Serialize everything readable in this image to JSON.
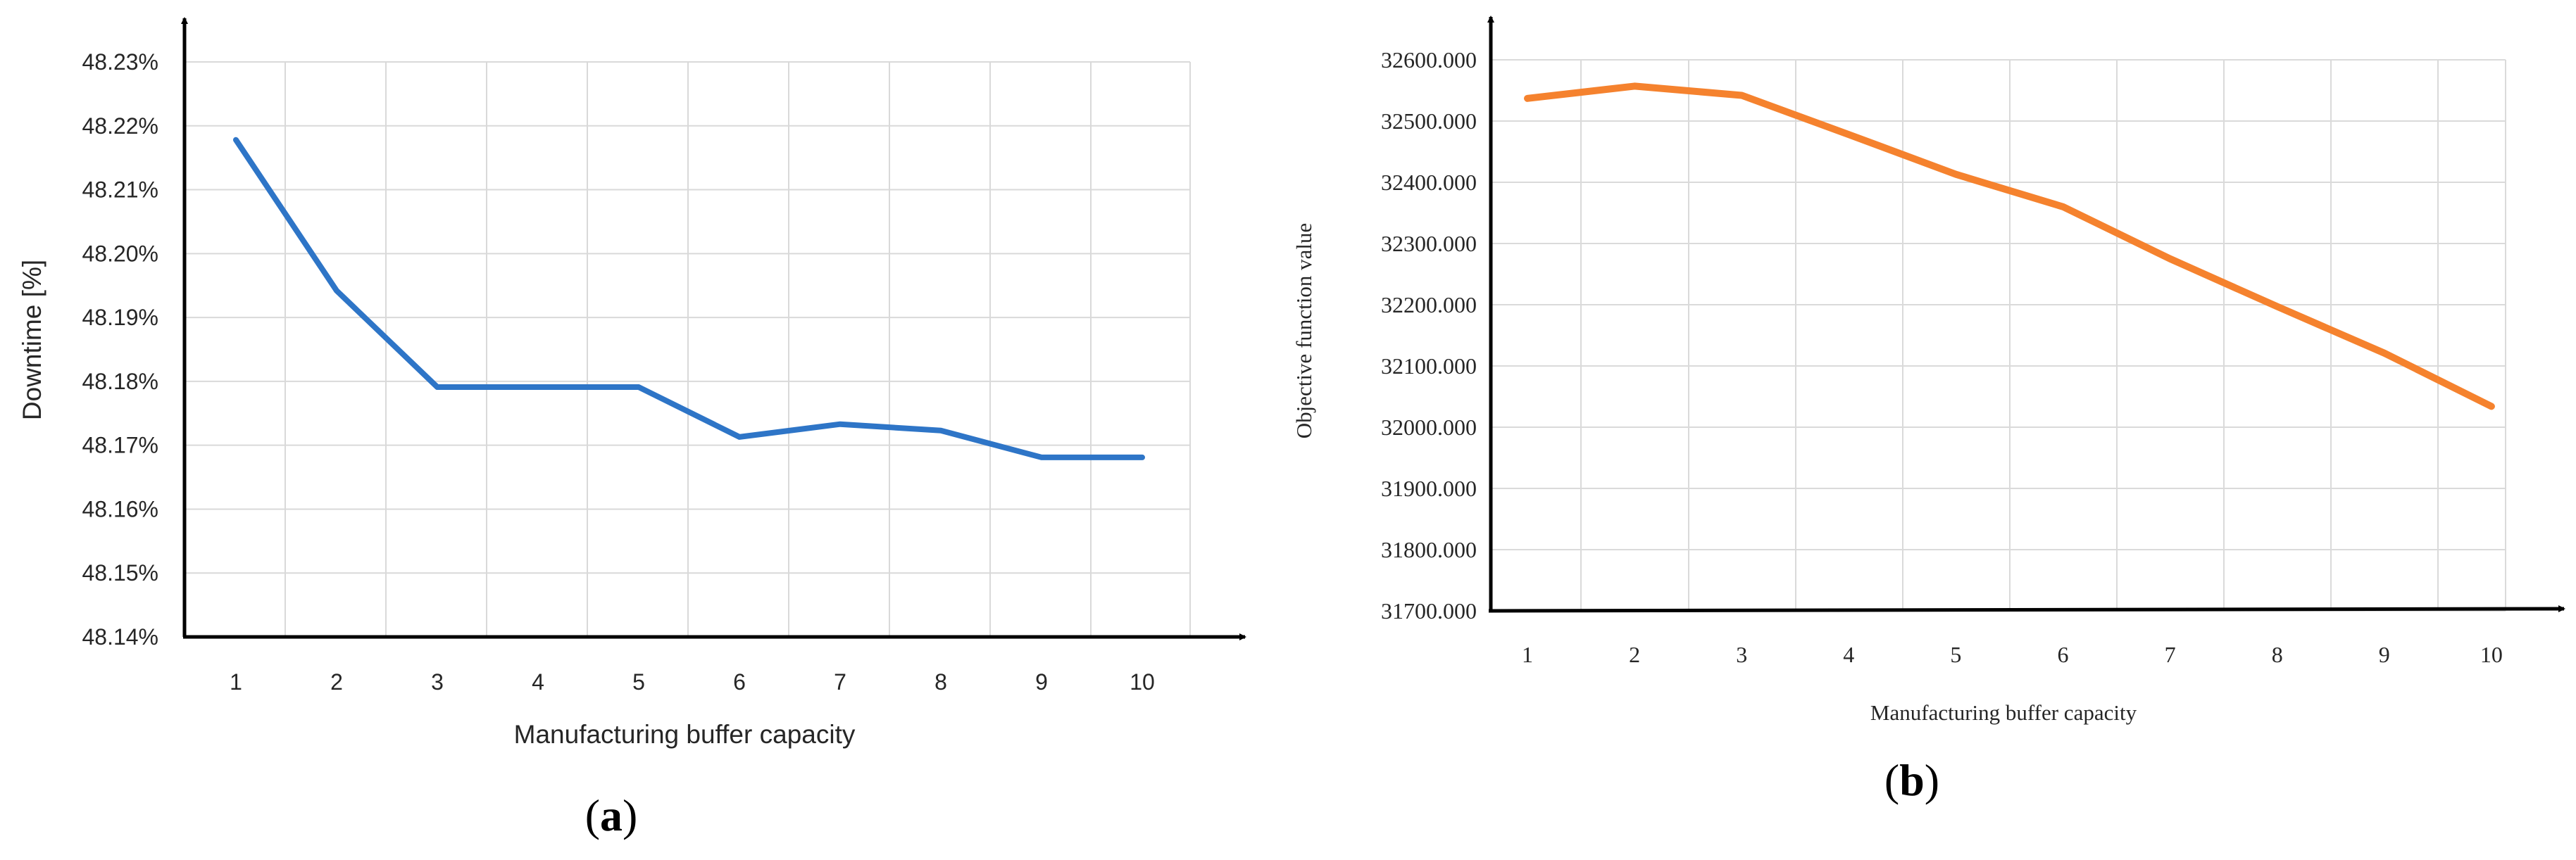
{
  "chart_data": [
    {
      "type": "line",
      "panel_label": "(a)",
      "panel_letter": "a",
      "title": "",
      "xlabel": "Manufacturing buffer capacity",
      "ylabel": "Downtime [%]",
      "x": [
        1,
        2,
        3,
        4,
        5,
        6,
        7,
        8,
        9,
        10
      ],
      "x_tick_labels": [
        "1",
        "2",
        "3",
        "4",
        "5",
        "6",
        "7",
        "8",
        "9",
        "10"
      ],
      "y_tick_labels": [
        "48.14%",
        "48.15%",
        "48.16%",
        "48.17%",
        "48.18%",
        "48.19%",
        "48.20%",
        "48.21%",
        "48.22%",
        "48.23%"
      ],
      "ylim": [
        48.14,
        48.23
      ],
      "y_ticks": [
        48.14,
        48.15,
        48.16,
        48.17,
        48.18,
        48.19,
        48.2,
        48.21,
        48.22,
        48.23
      ],
      "grid": true,
      "series": [
        {
          "values": [
            48.2178,
            48.1942,
            48.1791,
            48.1791,
            48.1791,
            48.1713,
            48.1733,
            48.1723,
            48.1681,
            48.1681
          ],
          "color": "#2e75c7"
        }
      ]
    },
    {
      "type": "line",
      "panel_label": "(b)",
      "panel_letter": "b",
      "title": "",
      "xlabel": "Manufacturing buffer capacity",
      "ylabel": "Objective function value",
      "x": [
        1,
        2,
        3,
        4,
        5,
        6,
        7,
        8,
        9,
        10
      ],
      "x_tick_labels": [
        "1",
        "2",
        "3",
        "4",
        "5",
        "6",
        "7",
        "8",
        "9",
        "10"
      ],
      "y_tick_labels": [
        "31700.000",
        "31800.000",
        "31900.000",
        "32000.000",
        "32100.000",
        "32200.000",
        "32300.000",
        "32400.000",
        "32500.000",
        "32600.000"
      ],
      "ylim": [
        31700,
        32600
      ],
      "y_ticks": [
        31700,
        31800,
        31900,
        32000,
        32100,
        32200,
        32300,
        32400,
        32500,
        32600
      ],
      "grid": true,
      "series": [
        {
          "values": [
            32537,
            32557,
            32542,
            32478,
            32413,
            32360,
            32275,
            32197,
            32121,
            32034
          ],
          "color": "#f5822e"
        }
      ]
    }
  ]
}
